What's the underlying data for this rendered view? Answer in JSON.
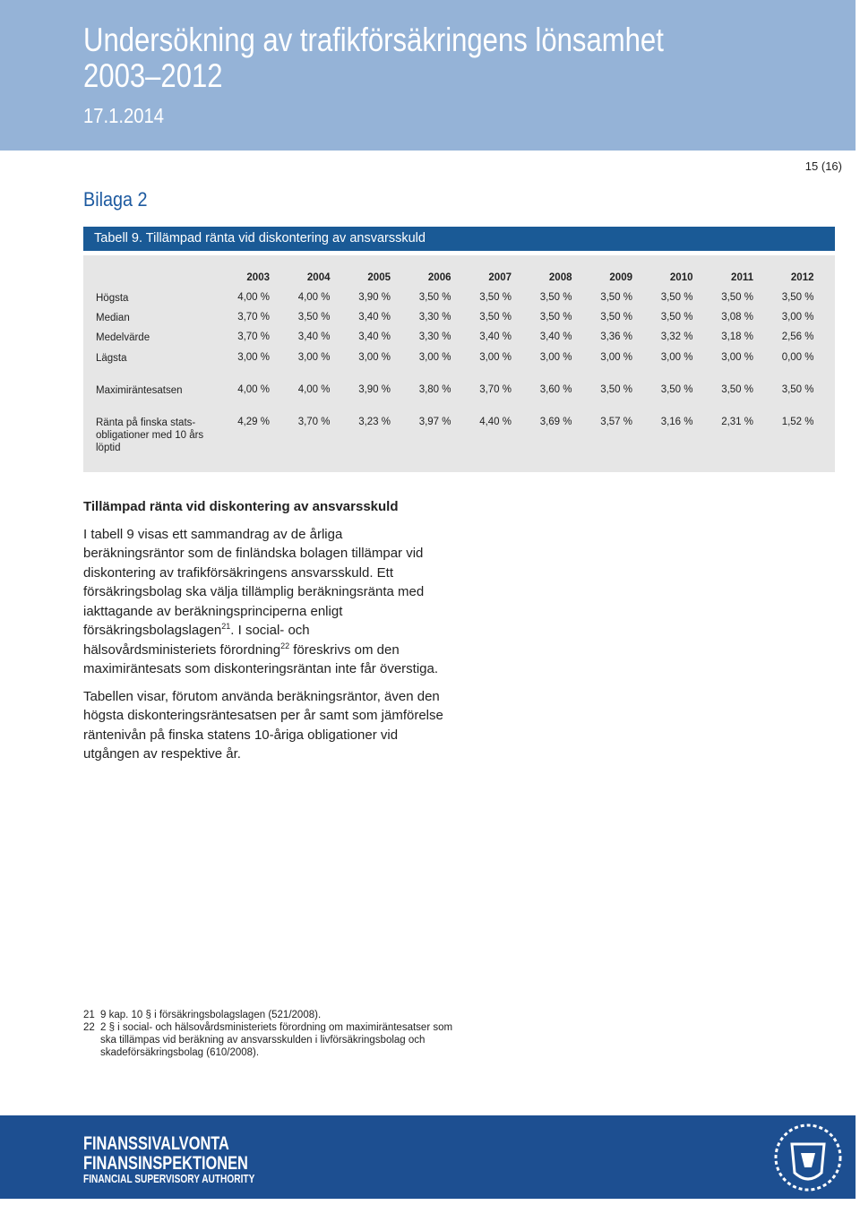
{
  "header": {
    "title_lines": [
      "Undersökning av trafikförsäkringens lönsamhet",
      "2003–2012"
    ],
    "date": "17.1.2014"
  },
  "page_number": "15 (16)",
  "appendix": "Bilaga 2",
  "table": {
    "caption": "Tabell 9. Tillämpad ränta vid diskontering av ansvarsskuld",
    "columns": [
      "2003",
      "2004",
      "2005",
      "2006",
      "2007",
      "2008",
      "2009",
      "2010",
      "2011",
      "2012"
    ],
    "rows": [
      {
        "label_lines": [
          "Högsta"
        ],
        "cells": [
          "4,00 %",
          "4,00 %",
          "3,90 %",
          "3,50 %",
          "3,50 %",
          "3,50 %",
          "3,50 %",
          "3,50 %",
          "3,50 %",
          "3,50 %"
        ]
      },
      {
        "label_lines": [
          "Median"
        ],
        "cells": [
          "3,70 %",
          "3,50 %",
          "3,40 %",
          "3,30 %",
          "3,50 %",
          "3,50 %",
          "3,50 %",
          "3,50 %",
          "3,08 %",
          "3,00 %"
        ]
      },
      {
        "label_lines": [
          "Medelvärde"
        ],
        "cells": [
          "3,70 %",
          "3,40 %",
          "3,40 %",
          "3,30 %",
          "3,40 %",
          "3,40 %",
          "3,36 %",
          "3,32 %",
          "3,18 %",
          "2,56 %"
        ]
      },
      {
        "label_lines": [
          "Lägsta"
        ],
        "cells": [
          "3,00 %",
          "3,00 %",
          "3,00 %",
          "3,00 %",
          "3,00 %",
          "3,00 %",
          "3,00 %",
          "3,00 %",
          "3,00 %",
          "0,00 %"
        ]
      },
      {
        "label_lines": [
          "Maximiräntesatsen"
        ],
        "cells": [
          "4,00 %",
          "4,00 %",
          "3,90 %",
          "3,80 %",
          "3,70 %",
          "3,60 %",
          "3,50 %",
          "3,50 %",
          "3,50 %",
          "3,50 %"
        ]
      },
      {
        "label_lines": [
          "Ränta på finska stats-",
          "obligationer med 10 års",
          "löptid"
        ],
        "cells": [
          "4,29 %",
          "3,70 %",
          "3,23 %",
          "3,97 %",
          "4,40 %",
          "3,69 %",
          "3,57 %",
          "3,16 %",
          "2,31 %",
          "1,52 %"
        ]
      }
    ]
  },
  "section": {
    "heading": "Tillämpad ränta vid diskontering av ansvarsskuld",
    "paragraphs": [
      {
        "parts": [
          "I tabell 9 visas ett sammandrag av de årliga beräkningsräntor som de finländska bolagen tillämpar vid diskontering av trafikförsäkringens ansvarsskuld. Ett försäkringsbolag ska välja tillämplig beräkningsränta med iakttagande av beräkningsprinciperna enligt försäkringsbolagslagen",
          "21",
          ". I social- och hälsovårdsministeriets förordning",
          "22",
          " föreskrivs om den maximiräntesats som diskonteringsräntan inte får överstiga."
        ]
      },
      {
        "parts": [
          "Tabellen visar, förutom använda beräkningsräntor, även den högsta diskonteringsräntesatsen per år samt som jämförelse räntenivån på finska statens 10-åriga obligationer vid utgången av respektive år."
        ]
      }
    ]
  },
  "footnotes": [
    {
      "number": "21",
      "text": "9 kap. 10 § i försäkringsbolagslagen (521/2008)."
    },
    {
      "number": "22",
      "text": "2 § i social- och hälsovårdsministeriets förordning om maximiräntesatser som ska tillämpas vid beräkning av ansvarsskulden i livförsäkringsbolag och skadeförsäkringsbolag (610/2008)."
    }
  ],
  "footer": {
    "logo_lines": [
      "FINANSSIVALVONTA",
      "FINANSINSPEKTIONEN",
      "FINANCIAL SUPERVISORY AUTHORITY"
    ]
  }
}
